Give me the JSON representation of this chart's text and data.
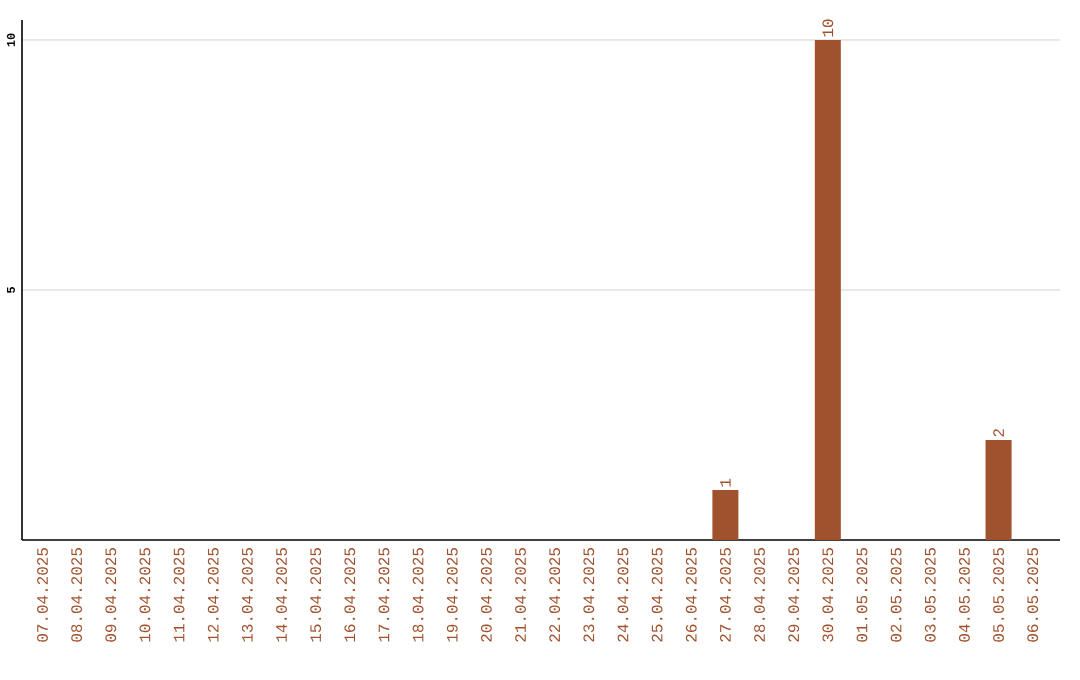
{
  "chart_data": {
    "type": "bar",
    "categories": [
      "07.04.2025",
      "08.04.2025",
      "09.04.2025",
      "10.04.2025",
      "11.04.2025",
      "12.04.2025",
      "13.04.2025",
      "14.04.2025",
      "15.04.2025",
      "16.04.2025",
      "17.04.2025",
      "18.04.2025",
      "19.04.2025",
      "20.04.2025",
      "21.04.2025",
      "22.04.2025",
      "23.04.2025",
      "24.04.2025",
      "25.04.2025",
      "26.04.2025",
      "27.04.2025",
      "28.04.2025",
      "29.04.2025",
      "30.04.2025",
      "01.05.2025",
      "02.05.2025",
      "03.05.2025",
      "04.05.2025",
      "05.05.2025",
      "06.05.2025"
    ],
    "values": [
      0,
      0,
      0,
      0,
      0,
      0,
      0,
      0,
      0,
      0,
      0,
      0,
      0,
      0,
      0,
      0,
      0,
      0,
      0,
      0,
      1,
      0,
      0,
      10,
      0,
      0,
      0,
      0,
      2,
      0
    ],
    "value_labels": [
      null,
      null,
      null,
      null,
      null,
      null,
      null,
      null,
      null,
      null,
      null,
      null,
      null,
      null,
      null,
      null,
      null,
      null,
      null,
      null,
      "1",
      null,
      null,
      "10",
      null,
      null,
      null,
      null,
      "2",
      null
    ],
    "color": "#a0522d",
    "ylim": [
      0,
      10.4
    ],
    "yticks": [
      5,
      10
    ],
    "grid": "y"
  }
}
